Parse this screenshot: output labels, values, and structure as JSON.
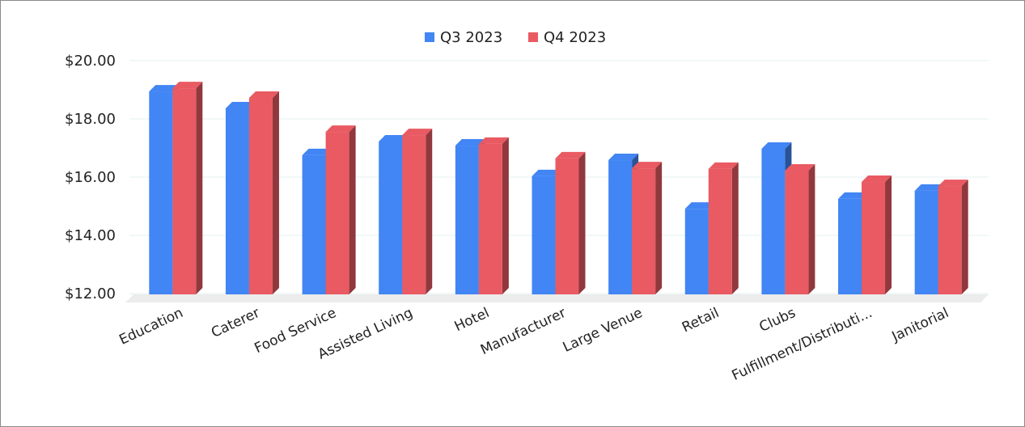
{
  "chart_data": {
    "type": "bar3d",
    "categories": [
      "Education",
      "Caterer",
      "Food Service",
      "Assisted Living",
      "Hotel",
      "Manufacturer",
      "Large Venue",
      "Retail",
      "Clubs",
      "Fulfillment/Distributi...",
      "Janitorial"
    ],
    "series": [
      {
        "name": "Q3 2023",
        "color": "#4285f4",
        "values": [
          18.97,
          18.39,
          16.78,
          17.25,
          17.11,
          16.06,
          16.61,
          14.94,
          17.0,
          15.28,
          15.56
        ]
      },
      {
        "name": "Q4 2023",
        "color": "#e95a62",
        "values": [
          19.08,
          18.75,
          17.58,
          17.47,
          17.17,
          16.67,
          16.33,
          16.31,
          16.25,
          15.86,
          15.72
        ]
      }
    ],
    "ylim": [
      12,
      20
    ],
    "yticks": [
      {
        "value": 12,
        "label": "$12.00"
      },
      {
        "value": 14,
        "label": "$14.00"
      },
      {
        "value": 16,
        "label": "$16.00"
      },
      {
        "value": 18,
        "label": "$18.00"
      },
      {
        "value": 20,
        "label": "$20.00"
      }
    ],
    "grid": true,
    "legend": "top"
  }
}
